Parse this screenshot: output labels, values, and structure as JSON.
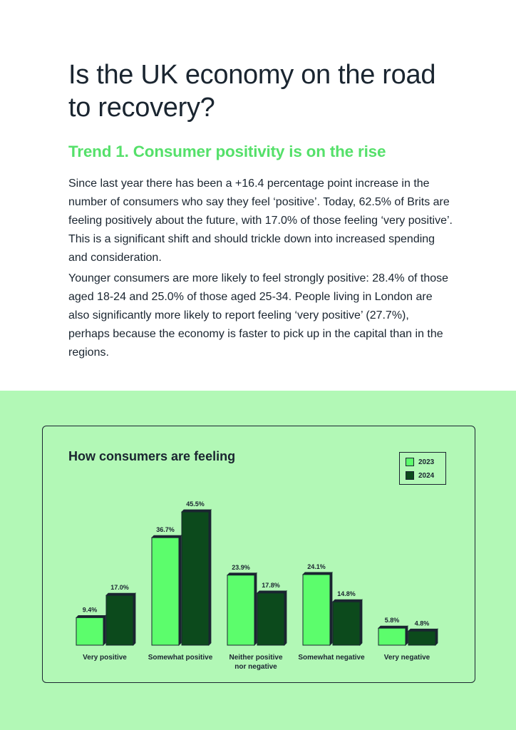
{
  "page": {
    "title": "Is the UK economy on the road to recovery?",
    "trend_heading": "Trend 1. Consumer positivity is on the rise",
    "paragraphs": [
      "Since last year there has been a +16.4 percentage point increase in the number of consumers who say they feel ‘positive’. Today, 62.5% of Brits are feeling positively about the future, with 17.0% of those feeling ‘very positive’. This is a significant shift and should trickle down into increased spending and consideration.",
      "Younger consumers are more likely to feel strongly positive: 28.4% of those aged 18-24 and 25.0% of those aged 25-34. People living in London are also significantly more likely to report feeling ‘very positive’ (27.7%), perhaps because the economy is faster to pick up in the capital than in the regions."
    ]
  },
  "colors": {
    "series_2023": "#5cfd6c",
    "series_2024": "#0c4a1c",
    "band": "#b2f8b6",
    "heading_accent": "#55e06a",
    "text": "#1a2530"
  },
  "chart_data": {
    "type": "bar",
    "title": "How consumers are feeling",
    "categories": [
      [
        "Very positive"
      ],
      [
        "Somewhat positive"
      ],
      [
        "Neither positive",
        "nor negative"
      ],
      [
        "Somewhat negative"
      ],
      [
        "Very negative"
      ]
    ],
    "series": [
      {
        "name": "2023",
        "values": [
          9.4,
          36.7,
          23.9,
          24.1,
          5.8
        ],
        "labels": [
          "9.4%",
          "36.7%",
          "23.9%",
          "24.1%",
          "5.8%"
        ]
      },
      {
        "name": "2024",
        "values": [
          17.0,
          45.5,
          17.8,
          14.8,
          4.8
        ],
        "labels": [
          "17.0%",
          "45.5%",
          "17.8%",
          "14.8%",
          "4.8%"
        ]
      }
    ],
    "ylim": [
      0,
      50
    ],
    "grid": false,
    "legend": "top-right",
    "unit": "%"
  }
}
